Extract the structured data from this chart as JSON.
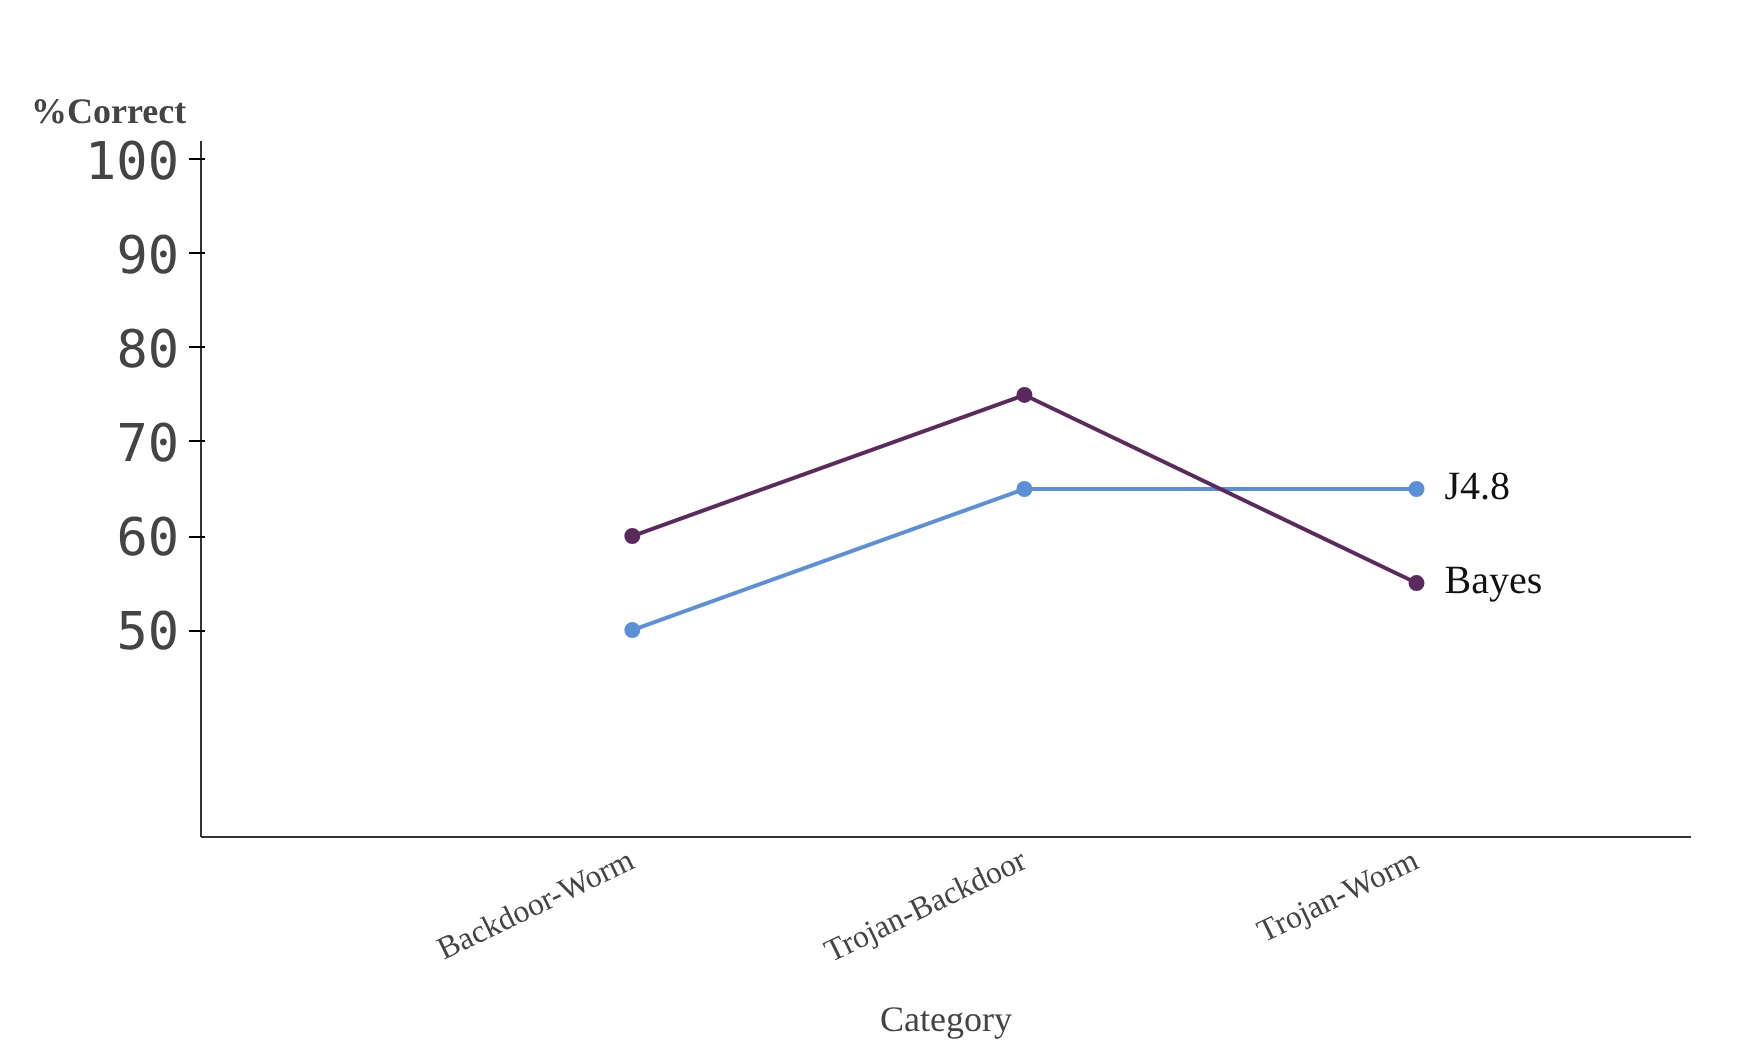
{
  "chart_data": {
    "type": "line",
    "xlabel": "Category",
    "ylabel": "%Correct",
    "categories": [
      "Backdoor-Worm",
      "Trojan-Backdoor",
      "Trojan-Worm"
    ],
    "series": [
      {
        "name": "J4.8",
        "color": "#5b8fd8",
        "values": [
          50,
          65,
          65
        ]
      },
      {
        "name": "Bayes",
        "color": "#5a2a5e",
        "values": [
          60,
          75,
          55
        ]
      }
    ],
    "ylim": [
      28,
      102
    ],
    "yticks": [
      50,
      60,
      70,
      80,
      90,
      100
    ],
    "grid": false,
    "marker": "circle",
    "line_style": "solid"
  }
}
